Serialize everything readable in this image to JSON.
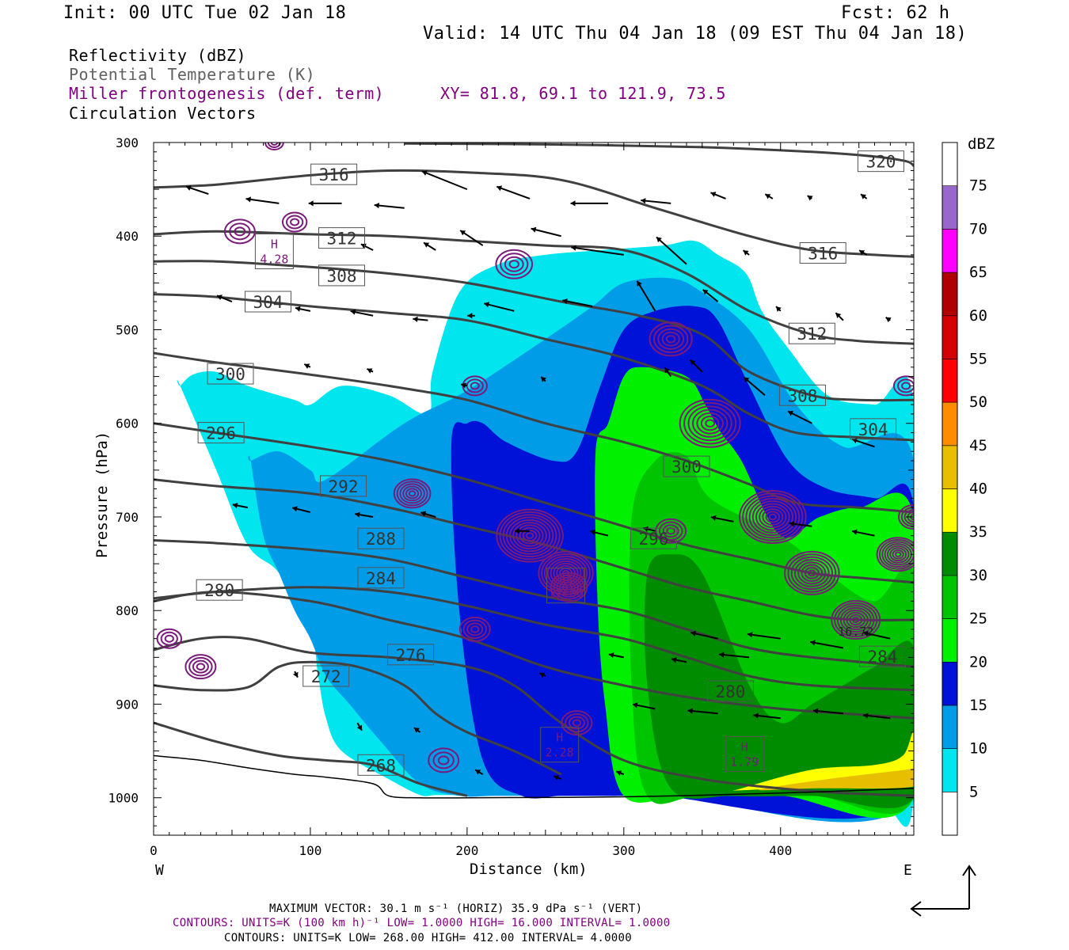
{
  "header": {
    "init": "Init: 00 UTC Tue 02 Jan 18",
    "fcst": "Fcst:   62 h",
    "valid": "Valid: 14 UTC Thu 04 Jan 18 (09 EST Thu 04 Jan 18)"
  },
  "legend": {
    "line1": "Reflectivity (dBZ)",
    "line2": "Potential Temperature (K)",
    "line3": "Miller frontogenesis (def. term)",
    "xy": "XY=  81.8, 69.1 to 121.9, 73.5",
    "line4": "Circulation Vectors"
  },
  "colors": {
    "theta": "#404040",
    "fronto": "#7a1a7a",
    "legend_gray": "#606060",
    "legend_purple": "#800080"
  },
  "chart_data": {
    "type": "cross-section",
    "xlabel": "Distance (km)",
    "ylabel": "Pressure (hPa)",
    "xlim": [
      0,
      485
    ],
    "ylim": [
      1040,
      300
    ],
    "x_ticks": [
      0,
      100,
      200,
      300,
      400
    ],
    "y_ticks": [
      300,
      400,
      500,
      600,
      700,
      800,
      900,
      1000
    ],
    "x_end_labels": {
      "left": "W",
      "right": "E"
    },
    "colorbar": {
      "title": "dBZ",
      "levels": [
        5,
        10,
        15,
        20,
        25,
        30,
        35,
        40,
        45,
        50,
        55,
        60,
        65,
        70,
        75
      ],
      "colors": [
        "#ffffff",
        "#00e5ee",
        "#009ce8",
        "#0012d8",
        "#00f000",
        "#00c400",
        "#008c00",
        "#ffff00",
        "#e8be00",
        "#ff8c00",
        "#ff0000",
        "#d40000",
        "#b00000",
        "#ff00ff",
        "#9966cc",
        "#ffffff"
      ]
    },
    "reflectivity_regions": [
      {
        "dbz": 5,
        "color": "#00e5ee",
        "x": [
          17,
          25,
          40,
          60,
          90,
          100,
          120,
          150,
          175,
          178,
          195,
          220,
          250,
          285,
          325,
          345,
          360,
          378,
          388,
          405,
          430,
          460,
          485,
          485,
          460,
          400,
          330,
          295,
          280,
          250,
          200,
          180,
          170,
          150,
          120,
          110,
          105,
          100,
          80,
          60,
          40,
          17
        ],
        "p": [
          560,
          548,
          545,
          560,
          575,
          580,
          560,
          570,
          590,
          545,
          460,
          430,
          420,
          415,
          410,
          405,
          420,
          440,
          480,
          520,
          570,
          580,
          580,
          1000,
          1000,
          1000,
          997,
          997,
          997,
          997,
          997,
          997,
          997,
          980,
          950,
          915,
          870,
          820,
          760,
          730,
          650,
          560
        ]
      },
      {
        "dbz": 10,
        "color": "#009ce8",
        "x": [
          62,
          80,
          100,
          110,
          160,
          200,
          250,
          280,
          300,
          330,
          350,
          380,
          410,
          440,
          485,
          485,
          330,
          280,
          220,
          195,
          170,
          145,
          125,
          110,
          100,
          90,
          80,
          70,
          62
        ],
        "p": [
          640,
          630,
          650,
          660,
          600,
          565,
          510,
          475,
          450,
          445,
          460,
          500,
          580,
          625,
          640,
          1000,
          998,
          998,
          998,
          998,
          985,
          940,
          900,
          870,
          830,
          800,
          760,
          720,
          640
        ]
      },
      {
        "dbz": 15,
        "color": "#0012d8",
        "x": [
          190,
          200,
          210,
          225,
          255,
          270,
          285,
          300,
          320,
          345,
          360,
          380,
          405,
          430,
          460,
          485,
          485,
          320,
          290,
          260,
          235,
          210,
          195
        ],
        "p": [
          620,
          600,
          600,
          620,
          640,
          630,
          560,
          500,
          480,
          475,
          490,
          560,
          640,
          670,
          680,
          690,
          1000,
          998,
          998,
          998,
          998,
          960,
          800
        ]
      },
      {
        "dbz": 20,
        "color": "#00f000",
        "x": [
          282,
          290,
          300,
          312,
          340,
          352,
          362,
          375,
          400,
          425,
          450,
          485,
          485,
          400,
          340,
          300,
          288,
          283
        ],
        "p": [
          630,
          600,
          550,
          540,
          550,
          580,
          610,
          640,
          720,
          700,
          690,
          700,
          1000,
          998,
          998,
          998,
          900,
          780
        ]
      },
      {
        "dbz": 25,
        "color": "#00c400",
        "x": [
          305,
          320,
          340,
          355,
          400,
          430,
          460,
          485,
          485,
          420,
          350,
          315,
          305
        ],
        "p": [
          700,
          640,
          635,
          680,
          720,
          760,
          790,
          760,
          1000,
          998,
          998,
          998,
          880
        ]
      },
      {
        "dbz": 30,
        "color": "#008c00",
        "x": [
          315,
          330,
          350,
          380,
          400,
          420,
          440,
          460,
          485,
          485,
          420,
          370,
          330,
          315
        ],
        "p": [
          760,
          740,
          760,
          880,
          920,
          900,
          880,
          860,
          840,
          1000,
          998,
          998,
          990,
          880
        ]
      },
      {
        "dbz": 35,
        "color": "#ffff00",
        "x": [
          375,
          420,
          460,
          478,
          485,
          485,
          420,
          375
        ],
        "p": [
          990,
          970,
          965,
          955,
          930,
          985,
          988,
          992
        ]
      },
      {
        "dbz": 40,
        "color": "#e8be00",
        "x": [
          390,
          430,
          480,
          485,
          485,
          420,
          390
        ],
        "p": [
          990,
          980,
          970,
          968,
          988,
          990,
          992
        ]
      }
    ],
    "theta_contours": [
      {
        "label": "320",
        "label_x": 464,
        "label_p": 320,
        "x": [
          160,
          250,
          350,
          420,
          460,
          480,
          485
        ],
        "p": [
          301,
          302,
          305,
          310,
          315,
          320,
          325
        ]
      },
      {
        "label": "316",
        "label_x": 115,
        "label_p": 334,
        "x": [
          0,
          40,
          100,
          150,
          200,
          260,
          320,
          380,
          420,
          460,
          485
        ],
        "p": [
          348,
          345,
          335,
          330,
          332,
          340,
          370,
          400,
          415,
          420,
          422
        ]
      },
      {
        "label": "316",
        "label_x": 427,
        "label_p": 418,
        "x": [],
        "p": []
      },
      {
        "label": "312",
        "label_x": 120,
        "label_p": 402,
        "x": [
          0,
          40,
          100,
          150,
          200,
          250,
          300,
          340,
          380,
          420,
          450,
          485
        ],
        "p": [
          398,
          395,
          398,
          400,
          405,
          410,
          415,
          440,
          480,
          505,
          512,
          515
        ]
      },
      {
        "label": "312",
        "label_x": 420,
        "label_p": 504,
        "x": [],
        "p": []
      },
      {
        "label": "308",
        "label_x": 120,
        "label_p": 442,
        "x": [
          0,
          40,
          100,
          150,
          200,
          260,
          310,
          350,
          380,
          420,
          450,
          485
        ],
        "p": [
          427,
          427,
          433,
          440,
          450,
          470,
          485,
          505,
          545,
          570,
          575,
          575
        ]
      },
      {
        "label": "308",
        "label_x": 414,
        "label_p": 570,
        "x": [],
        "p": []
      },
      {
        "label": "304",
        "label_x": 73,
        "label_p": 470,
        "x": [
          0,
          40,
          100,
          150,
          200,
          250,
          300,
          350,
          380,
          410,
          450,
          485
        ],
        "p": [
          462,
          465,
          475,
          482,
          490,
          510,
          530,
          560,
          590,
          610,
          615,
          618
        ]
      },
      {
        "label": "304",
        "label_x": 459,
        "label_p": 606,
        "x": [],
        "p": []
      },
      {
        "label": "300",
        "label_x": 49,
        "label_p": 547,
        "x": [
          0,
          40,
          100,
          150,
          200,
          250,
          300,
          340,
          380,
          410,
          450,
          485
        ],
        "p": [
          525,
          535,
          548,
          560,
          575,
          600,
          620,
          640,
          665,
          685,
          690,
          695
        ]
      },
      {
        "label": "300",
        "label_x": 340,
        "label_p": 646,
        "x": [],
        "p": []
      },
      {
        "label": "296",
        "label_x": 43,
        "label_p": 610,
        "x": [
          0,
          40,
          100,
          150,
          200,
          250,
          300,
          340,
          380,
          420,
          450,
          485
        ],
        "p": [
          600,
          610,
          625,
          640,
          660,
          685,
          710,
          730,
          745,
          760,
          765,
          770
        ]
      },
      {
        "label": "296",
        "label_x": 319,
        "label_p": 723,
        "x": [],
        "p": []
      },
      {
        "label": "292",
        "label_x": 121,
        "label_p": 667,
        "x": [
          0,
          40,
          100,
          150,
          200,
          250,
          300,
          340,
          380,
          420,
          450,
          485
        ],
        "p": [
          660,
          667,
          675,
          690,
          710,
          730,
          755,
          775,
          790,
          805,
          810,
          810
        ]
      },
      {
        "label": "288",
        "label_x": 145,
        "label_p": 723,
        "x": [
          0,
          40,
          100,
          150,
          200,
          250,
          300,
          340,
          380,
          420,
          485
        ],
        "p": [
          725,
          728,
          735,
          745,
          765,
          785,
          800,
          820,
          840,
          850,
          860
        ]
      },
      {
        "label": "284",
        "label_x": 145,
        "label_p": 765,
        "x": [
          0,
          40,
          100,
          150,
          200,
          250,
          300,
          340,
          380,
          420,
          485
        ],
        "p": [
          787,
          780,
          775,
          780,
          795,
          815,
          830,
          850,
          870,
          880,
          885
        ]
      },
      {
        "label": "284",
        "label_x": 465,
        "label_p": 849,
        "x": [],
        "p": []
      },
      {
        "label": "280",
        "label_x": 42,
        "label_p": 778,
        "x": [
          0,
          40,
          100,
          150,
          200,
          250,
          300,
          350,
          400,
          440,
          485
        ],
        "p": [
          790,
          780,
          790,
          810,
          830,
          860,
          880,
          895,
          905,
          910,
          915
        ]
      },
      {
        "label": "280",
        "label_x": 368,
        "label_p": 886,
        "x": [],
        "p": []
      },
      {
        "label": "276",
        "label_x": 164,
        "label_p": 847,
        "x": [
          0,
          30,
          60,
          100,
          150,
          200,
          230,
          260,
          300,
          350,
          400,
          440,
          485
        ],
        "p": [
          842,
          830,
          830,
          845,
          850,
          860,
          880,
          920,
          960,
          980,
          990,
          995,
          998
        ]
      },
      {
        "label": "272",
        "label_x": 110,
        "label_p": 870,
        "x": [
          0,
          30,
          60,
          80,
          100,
          130,
          160,
          180,
          200,
          230,
          260
        ],
        "p": [
          880,
          885,
          882,
          860,
          855,
          860,
          880,
          910,
          930,
          950,
          975
        ]
      },
      {
        "label": "268",
        "label_x": 145,
        "label_p": 965,
        "x": [
          0,
          40,
          80,
          110,
          140,
          170,
          200
        ],
        "p": [
          920,
          940,
          955,
          960,
          965,
          985,
          998
        ]
      }
    ],
    "fronto_maxima": [
      {
        "label": "H",
        "value": "4.28",
        "x": 77,
        "p": 418
      },
      {
        "label": "H",
        "value": "11.08",
        "x": 263,
        "p": 775
      },
      {
        "label": "H",
        "value": "2.28",
        "x": 259,
        "p": 945
      },
      {
        "label": "H",
        "value": "1.79",
        "x": 377,
        "p": 955
      },
      {
        "label": "",
        "value": "16.72",
        "x": 448,
        "p": 816
      }
    ],
    "contour_info": {
      "max_vector": "MAXIMUM VECTOR:  30.1 m s⁻¹ (HORIZ)        35.9 dPa s⁻¹ (VERT)",
      "fronto_contours": "CONTOURS:  UNITS=K (100 km h)⁻¹  LOW=  1.0000      HIGH=  16.000      INTERVAL=    1.0000",
      "theta_contours": "CONTOURS:  UNITS=K  LOW=  268.00       HIGH=  412.00       INTERVAL=    4.0000"
    }
  }
}
